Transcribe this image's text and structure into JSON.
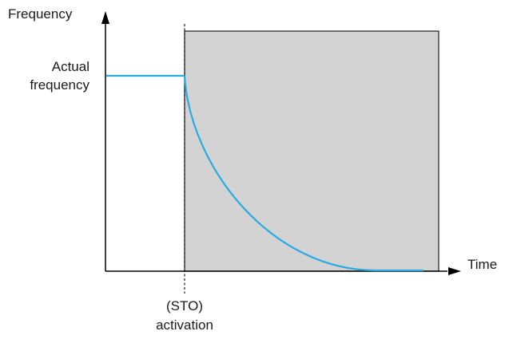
{
  "labels": {
    "y_axis": "Frequency",
    "x_axis": "Time",
    "level_line1": "Actual",
    "level_line2": "frequency",
    "event_line1": "(STO)",
    "event_line2": "activation"
  },
  "colors": {
    "curve": "#29abe2",
    "shaded_region": "#d3d3d3",
    "axis": "#000000",
    "text": "#1a1a1a"
  }
}
